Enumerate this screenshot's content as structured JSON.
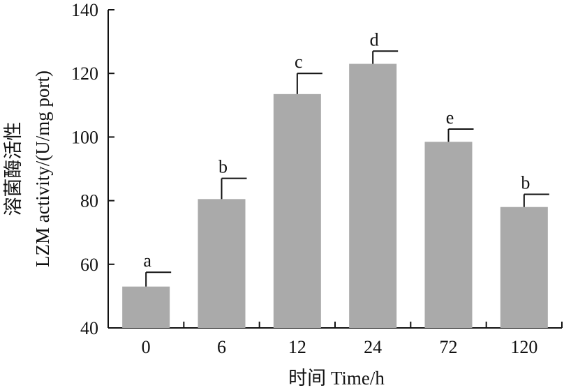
{
  "chart_data": {
    "type": "bar",
    "title": "",
    "xlabel": "时间 Time/h",
    "ylabel": "溶菌酶活性",
    "ylabel_line2": "LZM activity/(U/mg port)",
    "ylim": [
      40,
      140
    ],
    "yticks": [
      40,
      60,
      80,
      100,
      120,
      140
    ],
    "categories": [
      "0",
      "6",
      "12",
      "24",
      "72",
      "120"
    ],
    "values": [
      53,
      80.5,
      113.5,
      123,
      98.5,
      78
    ],
    "errors": [
      4.5,
      6.5,
      6.5,
      4,
      4,
      4
    ],
    "significance": [
      "a",
      "b",
      "c",
      "d",
      "e",
      "b"
    ],
    "bar_color": "#aaaaaa",
    "grid": false,
    "legend": "none"
  }
}
